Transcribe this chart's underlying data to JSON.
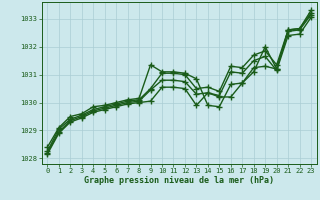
{
  "title": "Graphe pression niveau de la mer (hPa)",
  "bg_color": "#cce8ec",
  "grid_color": "#aacdd4",
  "line_color": "#1a5c1a",
  "marker_color": "#1a5c1a",
  "xlim": [
    -0.5,
    23.5
  ],
  "ylim": [
    1027.8,
    1033.6
  ],
  "yticks": [
    1028,
    1029,
    1030,
    1031,
    1032,
    1033
  ],
  "xticks": [
    0,
    1,
    2,
    3,
    4,
    5,
    6,
    7,
    8,
    9,
    10,
    11,
    12,
    13,
    14,
    15,
    16,
    17,
    18,
    19,
    20,
    21,
    22,
    23
  ],
  "lines": [
    {
      "x": [
        0,
        1,
        2,
        3,
        4,
        5,
        6,
        7,
        8,
        9,
        10,
        11,
        12,
        13,
        14,
        15,
        16,
        17,
        18,
        19,
        20,
        21,
        22,
        23
      ],
      "y": [
        1028.4,
        1029.1,
        1029.5,
        1029.6,
        1029.85,
        1029.9,
        1030.0,
        1030.1,
        1030.15,
        1031.35,
        1031.1,
        1031.1,
        1031.05,
        1030.85,
        1029.9,
        1029.85,
        1030.65,
        1030.7,
        1031.1,
        1032.0,
        1031.2,
        1032.6,
        1032.65,
        1033.2
      ],
      "linewidth": 1.0,
      "dashed": false
    },
    {
      "x": [
        0,
        1,
        2,
        3,
        4,
        5,
        6,
        7,
        8,
        9,
        10,
        11,
        12,
        13,
        14,
        15,
        16,
        17,
        18,
        19,
        20,
        21,
        22,
        23
      ],
      "y": [
        1028.25,
        1029.05,
        1029.4,
        1029.55,
        1029.75,
        1029.85,
        1029.95,
        1030.05,
        1030.1,
        1030.5,
        1031.05,
        1031.05,
        1031.0,
        1030.5,
        1030.55,
        1030.4,
        1031.3,
        1031.25,
        1031.7,
        1031.85,
        1031.35,
        1032.6,
        1032.65,
        1033.3
      ],
      "linewidth": 1.0,
      "dashed": false
    },
    {
      "x": [
        0,
        1,
        2,
        3,
        4,
        5,
        6,
        7,
        8,
        9,
        10,
        11,
        12,
        13,
        14,
        15,
        16,
        17,
        18,
        19,
        20,
        21,
        22,
        23
      ],
      "y": [
        1028.2,
        1028.95,
        1029.35,
        1029.5,
        1029.7,
        1029.8,
        1029.9,
        1030.0,
        1030.05,
        1030.45,
        1030.8,
        1030.8,
        1030.75,
        1030.3,
        1030.35,
        1030.25,
        1031.1,
        1031.05,
        1031.5,
        1031.65,
        1031.15,
        1032.4,
        1032.45,
        1033.05
      ],
      "linewidth": 1.0,
      "dashed": false
    },
    {
      "x": [
        0,
        1,
        2,
        3,
        4,
        5,
        6,
        7,
        8,
        9,
        10,
        11,
        12,
        13,
        14,
        15,
        16,
        17,
        18,
        19,
        20,
        21,
        22,
        23
      ],
      "y": [
        1028.15,
        1028.9,
        1029.3,
        1029.45,
        1029.65,
        1029.75,
        1029.85,
        1029.95,
        1030.0,
        1030.05,
        1030.55,
        1030.55,
        1030.5,
        1029.9,
        1030.35,
        1030.2,
        1030.2,
        1030.7,
        1031.25,
        1031.3,
        1031.2,
        1032.55,
        1032.6,
        1033.15
      ],
      "linewidth": 1.0,
      "dashed": false
    }
  ]
}
